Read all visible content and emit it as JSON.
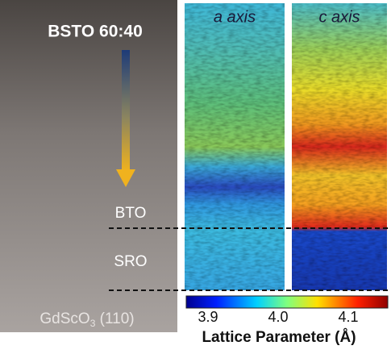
{
  "figure": {
    "film_label": "BSTO 60:40",
    "layers": [
      "BTO",
      "SRO"
    ],
    "substrate": {
      "text": "GdScO",
      "subscript": "3",
      "suffix": " (110)"
    },
    "panels": [
      "a axis",
      "c axis"
    ],
    "colorbar": {
      "ticks": [
        "3.9",
        "4.0",
        "4.1"
      ],
      "label": "Lattice Parameter (Å)"
    }
  }
}
